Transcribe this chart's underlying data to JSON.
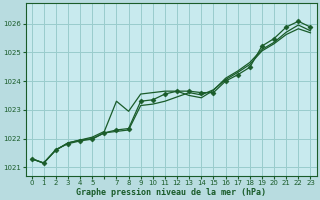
{
  "xlabel": "Graphe pression niveau de la mer (hPa)",
  "bg_color": "#b8dce0",
  "plot_bg_color": "#c8eaee",
  "grid_color": "#99cccc",
  "line_color": "#1a5c2a",
  "xlim": [
    -0.5,
    23.5
  ],
  "ylim": [
    1020.7,
    1026.7
  ],
  "yticks": [
    1021,
    1022,
    1023,
    1024,
    1025,
    1026
  ],
  "xticks": [
    0,
    1,
    2,
    3,
    4,
    5,
    7,
    8,
    9,
    10,
    11,
    12,
    13,
    14,
    15,
    16,
    17,
    18,
    19,
    20,
    21,
    22,
    23
  ],
  "series1": [
    1021.3,
    1021.15,
    1021.6,
    1021.85,
    1021.95,
    1022.05,
    1022.25,
    1023.3,
    1022.95,
    1023.55,
    1023.6,
    1023.65,
    1023.65,
    1023.5,
    1023.42,
    1023.68,
    1024.1,
    1024.35,
    1024.65,
    1025.1,
    1025.35,
    1025.7,
    1025.95,
    1025.75
  ],
  "series2": [
    1021.3,
    1021.15,
    1021.6,
    1021.85,
    1021.95,
    1022.0,
    1022.2,
    1022.25,
    1022.3,
    1023.15,
    1023.2,
    1023.3,
    1023.45,
    1023.6,
    1023.52,
    1023.7,
    1024.05,
    1024.3,
    1024.58,
    1025.05,
    1025.3,
    1025.62,
    1025.82,
    1025.68
  ],
  "series3": [
    1021.3,
    1021.15,
    1021.62,
    1021.82,
    1021.92,
    1021.98,
    1022.2,
    1022.3,
    1022.35,
    1023.3,
    1023.35,
    1023.55,
    1023.65,
    1023.65,
    1023.6,
    1023.6,
    1024.0,
    1024.22,
    1024.48,
    1025.22,
    1025.48,
    1025.88,
    1026.08,
    1025.88
  ],
  "marker": "D",
  "marker_size": 2.5,
  "line_width": 0.9
}
